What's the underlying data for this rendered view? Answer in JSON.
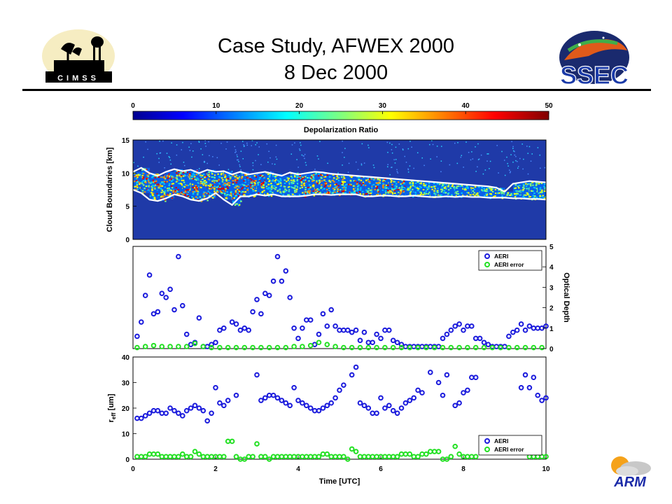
{
  "slide": {
    "title_line1": "Case Study, AFWEX 2000",
    "title_line2": "8 Dec 2000"
  },
  "logos": {
    "left": {
      "text": "CIMSS",
      "icon": "cimss-logo-icon"
    },
    "right": {
      "text": "SSEC",
      "icon": "ssec-logo-icon"
    },
    "bottom_right": {
      "text": "ARM",
      "icon": "arm-logo-icon"
    }
  },
  "colors": {
    "aeri": "#1a1adc",
    "aeri_error": "#22e022",
    "cloud_edge": "#ffffff",
    "field_bg": "#1f3aa8"
  },
  "chart_data": [
    {
      "type": "heatmap",
      "colorbar": {
        "label": "Depolarization Ratio",
        "range": [
          0,
          50
        ],
        "ticks": [
          "0",
          "10",
          "20",
          "30",
          "40",
          "50"
        ]
      },
      "ylabel": "Cloud Boundaries [km]",
      "ylim": [
        0,
        15
      ],
      "yticks": [
        "0",
        "5",
        "10",
        "15"
      ],
      "xlim": [
        0,
        10
      ],
      "cloud_top_km": {
        "x": [
          0,
          0.2,
          0.4,
          0.6,
          0.8,
          1.0,
          1.2,
          1.4,
          1.6,
          1.8,
          2.0,
          2.2,
          2.4,
          2.6,
          2.8,
          3.0,
          3.2,
          3.4,
          3.6,
          3.8,
          4.0,
          4.2,
          4.4,
          4.6,
          4.8,
          5.0,
          5.2,
          5.4,
          5.6,
          5.8,
          6.0,
          6.2,
          6.4,
          6.6,
          6.8,
          7.0,
          7.2,
          7.4,
          7.6,
          7.8,
          8.0,
          8.2,
          8.4,
          8.6,
          8.8,
          9.0,
          9.2,
          9.4,
          9.6,
          9.8,
          10.0
        ],
        "y": [
          10.2,
          10.8,
          10.0,
          9.6,
          10.2,
          10.6,
          10.3,
          10.5,
          10.0,
          10.5,
          10.2,
          10.3,
          9.8,
          10.2,
          9.8,
          10.0,
          10.2,
          9.9,
          9.6,
          10.1,
          9.8,
          10.0,
          10.2,
          10.1,
          9.9,
          9.8,
          9.7,
          9.6,
          9.5,
          9.4,
          9.3,
          9.2,
          9.1,
          9.0,
          8.9,
          8.8,
          8.7,
          8.6,
          8.5,
          8.4,
          8.3,
          8.2,
          8.1,
          8.0,
          7.8,
          7.2,
          8.4,
          8.6,
          8.8,
          8.7,
          8.6
        ]
      },
      "cloud_base_km": {
        "x": [
          0,
          0.2,
          0.4,
          0.6,
          0.8,
          1.0,
          1.2,
          1.4,
          1.6,
          1.8,
          2.0,
          2.2,
          2.4,
          2.6,
          2.8,
          3.0,
          3.2,
          3.4,
          3.6,
          3.8,
          4.0,
          4.2,
          4.4,
          4.6,
          4.8,
          5.0,
          5.2,
          5.4,
          5.6,
          5.8,
          6.0,
          6.2,
          6.4,
          6.6,
          6.8,
          7.0,
          7.2,
          7.4,
          7.6,
          7.8,
          8.0,
          8.2,
          8.4,
          8.6,
          8.8,
          9.0,
          9.2,
          9.4,
          9.6,
          9.8,
          10.0
        ],
        "y": [
          7.5,
          7.0,
          6.0,
          5.8,
          6.2,
          6.8,
          6.5,
          6.0,
          5.8,
          6.2,
          7.0,
          6.0,
          5.2,
          6.5,
          6.5,
          6.8,
          6.6,
          6.8,
          6.5,
          6.5,
          6.5,
          6.6,
          6.8,
          6.8,
          6.7,
          6.8,
          6.8,
          6.8,
          6.5,
          6.5,
          6.6,
          6.6,
          6.5,
          6.5,
          6.6,
          6.5,
          6.4,
          6.4,
          6.5,
          6.4,
          6.5,
          6.4,
          6.4,
          6.3,
          6.3,
          6.3,
          6.2,
          6.2,
          6.1,
          6.1,
          6.0
        ]
      }
    },
    {
      "type": "scatter",
      "ylabel": "Optical Depth",
      "ylim": [
        0,
        5
      ],
      "yticks": [
        "0",
        "1",
        "2",
        "3",
        "4",
        "5"
      ],
      "xlim": [
        0,
        10
      ],
      "legend": "top-right",
      "series": [
        {
          "name": "AERI",
          "x": [
            0.1,
            0.2,
            0.3,
            0.4,
            0.5,
            0.6,
            0.7,
            0.8,
            0.9,
            1.0,
            1.1,
            1.2,
            1.3,
            1.4,
            1.5,
            1.6,
            1.7,
            1.8,
            1.9,
            2.0,
            2.1,
            2.2,
            2.4,
            2.5,
            2.6,
            2.7,
            2.8,
            2.9,
            3.0,
            3.1,
            3.2,
            3.3,
            3.4,
            3.5,
            3.6,
            3.7,
            3.8,
            3.9,
            4.0,
            4.1,
            4.2,
            4.3,
            4.4,
            4.5,
            4.6,
            4.7,
            4.8,
            4.9,
            5.0,
            5.1,
            5.2,
            5.3,
            5.4,
            5.5,
            5.6,
            5.7,
            5.8,
            5.9,
            6.0,
            6.1,
            6.2,
            6.3,
            6.4,
            6.5,
            6.6,
            6.7,
            6.8,
            6.9,
            7.0,
            7.1,
            7.2,
            7.3,
            7.4,
            7.5,
            7.6,
            7.7,
            7.8,
            7.9,
            8.0,
            8.1,
            8.2,
            8.3,
            8.4,
            8.5,
            8.6,
            8.7,
            8.8,
            8.9,
            9.0,
            9.1,
            9.2,
            9.3,
            9.4,
            9.5,
            9.6,
            9.7,
            9.8,
            9.9,
            10.0
          ],
          "y": [
            0.6,
            1.3,
            2.6,
            3.6,
            1.7,
            1.8,
            2.7,
            2.5,
            2.9,
            1.9,
            4.5,
            2.1,
            0.7,
            0.2,
            0.3,
            1.5,
            0.1,
            0.1,
            0.2,
            0.3,
            0.9,
            1.0,
            1.3,
            1.2,
            0.9,
            1.0,
            0.9,
            1.8,
            2.4,
            1.7,
            2.7,
            2.6,
            3.3,
            4.5,
            3.3,
            3.8,
            2.5,
            1.0,
            0.5,
            1.0,
            1.4,
            1.4,
            0.2,
            0.7,
            1.7,
            1.1,
            1.9,
            1.1,
            0.9,
            0.9,
            0.9,
            0.8,
            0.9,
            0.4,
            0.8,
            0.3,
            0.3,
            0.7,
            0.5,
            0.9,
            0.9,
            0.4,
            0.3,
            0.2,
            0.1,
            0.1,
            0.1,
            0.1,
            0.1,
            0.1,
            0.1,
            0.1,
            0.1,
            0.5,
            0.7,
            0.9,
            1.1,
            1.2,
            0.9,
            1.1,
            1.1,
            0.5,
            0.5,
            0.3,
            0.2,
            0.1,
            0.1,
            0.1,
            0.1,
            0.6,
            0.8,
            0.9,
            1.2,
            0.9,
            1.1,
            1.0,
            1.0,
            1.0,
            1.1
          ]
        },
        {
          "name": "AERI error",
          "x": [
            0.1,
            0.3,
            0.5,
            0.7,
            0.9,
            1.1,
            1.3,
            1.5,
            1.7,
            1.9,
            2.1,
            2.3,
            2.5,
            2.7,
            2.9,
            3.1,
            3.3,
            3.5,
            3.7,
            3.9,
            4.1,
            4.3,
            4.5,
            4.7,
            4.9,
            5.1,
            5.3,
            5.5,
            5.7,
            5.9,
            6.1,
            6.3,
            6.5,
            6.7,
            6.9,
            7.1,
            7.3,
            7.5,
            7.7,
            7.9,
            8.1,
            8.3,
            8.5,
            8.7,
            8.9,
            9.1,
            9.3,
            9.5,
            9.7,
            9.9
          ],
          "y": [
            0.05,
            0.1,
            0.15,
            0.1,
            0.1,
            0.1,
            0.1,
            0.25,
            0.1,
            0.05,
            0.05,
            0.05,
            0.05,
            0.05,
            0.05,
            0.05,
            0.05,
            0.05,
            0.05,
            0.1,
            0.1,
            0.15,
            0.3,
            0.2,
            0.1,
            0.05,
            0.05,
            0.05,
            0.05,
            0.05,
            0.05,
            0.05,
            0.05,
            0.05,
            0.05,
            0.05,
            0.05,
            0.05,
            0.05,
            0.05,
            0.05,
            0.05,
            0.05,
            0.05,
            0.05,
            0.05,
            0.05,
            0.05,
            0.05,
            0.05
          ]
        }
      ]
    },
    {
      "type": "scatter",
      "ylabel_main": "r",
      "ylabel_sub": "eff",
      "ylabel_unit": " [um]",
      "xlabel": "Time [UTC]",
      "ylim": [
        0,
        40
      ],
      "yticks": [
        "0",
        "10",
        "20",
        "30",
        "40"
      ],
      "xlim": [
        0,
        10
      ],
      "xticks": [
        "0",
        "2",
        "4",
        "6",
        "8",
        "10"
      ],
      "legend": "bottom-right",
      "series": [
        {
          "name": "AERI",
          "x": [
            0.1,
            0.2,
            0.3,
            0.4,
            0.5,
            0.6,
            0.7,
            0.8,
            0.9,
            1.0,
            1.1,
            1.2,
            1.3,
            1.4,
            1.5,
            1.6,
            1.7,
            1.8,
            1.9,
            2.0,
            2.1,
            2.2,
            2.3,
            2.5,
            3.0,
            3.1,
            3.2,
            3.3,
            3.4,
            3.5,
            3.6,
            3.7,
            3.8,
            3.9,
            4.0,
            4.1,
            4.2,
            4.3,
            4.4,
            4.5,
            4.6,
            4.7,
            4.8,
            4.9,
            5.0,
            5.1,
            5.3,
            5.4,
            5.5,
            5.6,
            5.7,
            5.8,
            5.9,
            6.0,
            6.1,
            6.2,
            6.3,
            6.4,
            6.5,
            6.6,
            6.7,
            6.8,
            6.9,
            7.0,
            7.2,
            7.4,
            7.5,
            7.6,
            7.8,
            7.9,
            8.0,
            8.1,
            8.2,
            8.3,
            9.4,
            9.5,
            9.6,
            9.7,
            9.8,
            9.9,
            10.0
          ],
          "y": [
            16,
            16,
            17,
            18,
            19,
            19,
            18,
            18,
            20,
            19,
            18,
            17,
            19,
            20,
            21,
            20,
            19,
            15,
            18,
            28,
            22,
            21,
            23,
            25,
            33,
            23,
            24,
            25,
            25,
            24,
            23,
            22,
            21,
            28,
            23,
            22,
            21,
            20,
            19,
            19,
            20,
            21,
            22,
            24,
            27,
            29,
            33,
            36,
            22,
            21,
            20,
            18,
            18,
            24,
            20,
            21,
            19,
            18,
            20,
            22,
            23,
            24,
            27,
            26,
            34,
            30,
            25,
            33,
            21,
            22,
            26,
            27,
            32,
            32,
            28,
            33,
            28,
            32,
            25,
            23,
            24
          ]
        },
        {
          "name": "AERI error",
          "x": [
            0.1,
            0.2,
            0.3,
            0.4,
            0.5,
            0.6,
            0.7,
            0.8,
            0.9,
            1.0,
            1.1,
            1.2,
            1.3,
            1.4,
            1.5,
            1.6,
            1.7,
            1.8,
            1.9,
            2.0,
            2.1,
            2.2,
            2.3,
            2.4,
            2.5,
            2.6,
            2.7,
            2.8,
            2.9,
            3.0,
            3.1,
            3.2,
            3.3,
            3.4,
            3.5,
            3.6,
            3.7,
            3.8,
            3.9,
            4.0,
            4.1,
            4.2,
            4.3,
            4.4,
            4.5,
            4.6,
            4.7,
            4.8,
            4.9,
            5.0,
            5.1,
            5.2,
            5.3,
            5.4,
            5.5,
            5.6,
            5.7,
            5.8,
            5.9,
            6.0,
            6.1,
            6.2,
            6.3,
            6.4,
            6.5,
            6.6,
            6.7,
            6.8,
            6.9,
            7.0,
            7.1,
            7.2,
            7.3,
            7.4,
            7.5,
            7.6,
            7.7,
            7.8,
            7.9,
            8.0,
            8.1,
            8.2,
            8.3,
            9.6,
            9.7,
            9.8,
            9.9,
            10.0
          ],
          "y": [
            1,
            1,
            1,
            2,
            2,
            2,
            1,
            1,
            1,
            1,
            1,
            2,
            1,
            1,
            3,
            2,
            1,
            1,
            1,
            1,
            1,
            1,
            7,
            7,
            1,
            0,
            0,
            1,
            1,
            6,
            1,
            1,
            0,
            1,
            1,
            1,
            1,
            1,
            1,
            1,
            1,
            1,
            1,
            1,
            1,
            2,
            2,
            1,
            1,
            1,
            1,
            0,
            4,
            3,
            1,
            1,
            1,
            1,
            1,
            1,
            1,
            1,
            1,
            1,
            2,
            2,
            2,
            1,
            1,
            2,
            2,
            3,
            3,
            3,
            0,
            0,
            1,
            5,
            2,
            1,
            1,
            1,
            1,
            1,
            1,
            1,
            1,
            1
          ]
        }
      ]
    }
  ]
}
